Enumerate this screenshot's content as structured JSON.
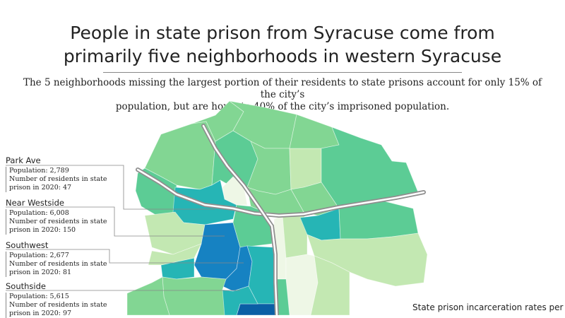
{
  "title_line1": "People in state prison from Syracuse come from",
  "title_line2": "primarily five neighborhoods in western Syracuse",
  "subtitle_line1": "The 5 neighborhoods missing the largest portion of their residents to state prisons account for only 15% of the city’s",
  "subtitle_line2": "population, but are home to 40% of the city’s imprisoned population.",
  "callouts": [
    {
      "name": "Park Ave",
      "pop": "Population: 2,789",
      "line2": "Number of residents in state",
      "line3": "prison in 2020: 47"
    },
    {
      "name": "Near Westside",
      "pop": "Population: 6,008",
      "line2": "Number of residents in state",
      "line3": "prison in 2020: 150"
    },
    {
      "name": "Southwest",
      "pop": "Population: 2,677",
      "line2": "Number of residents in state",
      "line3": "prison in 2020: 81"
    },
    {
      "name": "Southside",
      "pop": "Population: 5,615",
      "line2": "Number of residents in state",
      "line3": "prison in 2020: 97"
    }
  ],
  "legend_title": "State prison incarceration rates per",
  "colors": {
    "lightest": "#eef7e6",
    "light": "#c3e8b2",
    "mid_light": "#82d693",
    "mid": "#5ccc95",
    "teal": "#26b5b5",
    "blue": "#1682c2",
    "dark_blue": "#0a5fa5",
    "highway": "#9c9c9c"
  }
}
